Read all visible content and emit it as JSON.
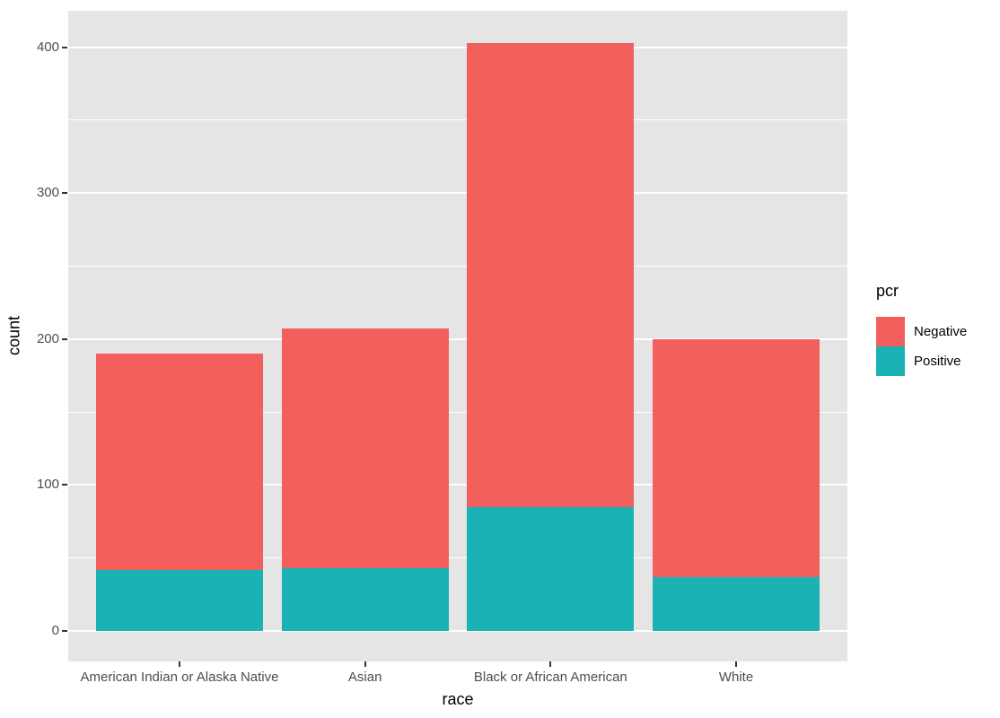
{
  "chart_data": {
    "type": "bar",
    "stacked": true,
    "title": "",
    "xlabel": "race",
    "ylabel": "count",
    "legend_title": "pcr",
    "legend_position": "right",
    "categories": [
      "American Indian or Alaska Native",
      "Asian",
      "Black or African American",
      "White"
    ],
    "series": [
      {
        "name": "Negative",
        "color": "#F25F5C",
        "values": [
          148,
          164,
          318,
          163
        ]
      },
      {
        "name": "Positive",
        "color": "#1AB2B5",
        "values": [
          42,
          43,
          85,
          37
        ]
      }
    ],
    "totals": [
      190,
      207,
      403,
      200
    ],
    "y_major_ticks": [
      0,
      100,
      200,
      300,
      400
    ],
    "y_minor_ticks": [
      50,
      150,
      250,
      350
    ],
    "ylim": [
      -21,
      425
    ],
    "grid": true,
    "panel_background": "#E5E5E5",
    "grid_color": "#FFFFFF",
    "axis_text_color": "#4D4D4D",
    "tick_mark_color": "#333333"
  }
}
